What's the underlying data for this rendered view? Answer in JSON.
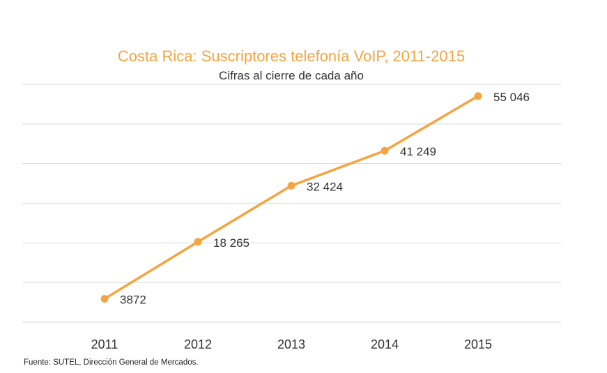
{
  "chart_data": {
    "type": "line",
    "title": "Costa Rica: Suscriptores telefonía VoIP, 2011-2015",
    "subtitle": "Cifras al cierre de cada año",
    "categories": [
      "2011",
      "2012",
      "2013",
      "2014",
      "2015"
    ],
    "values": [
      3872,
      18265,
      32424,
      41249,
      55046
    ],
    "data_labels": [
      "3872",
      "18 265",
      "32 424",
      "41 249",
      "55 046"
    ],
    "ylim": [
      -2000,
      58000
    ],
    "grid": true,
    "y_tick_labels_shown": false,
    "legend": "none",
    "line_color": "#f5a442"
  },
  "source": "Fuente: SUTEL, Dirección General de Mercados."
}
